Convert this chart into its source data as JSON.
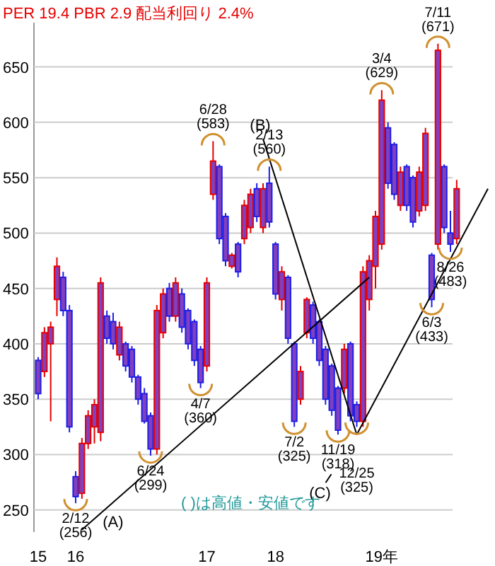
{
  "chart_data": {
    "type": "candlestick",
    "title": "PER 19.4 PBR 2.9 配当利回り 2.4%",
    "categories": [
      "15",
      null,
      null,
      null,
      null,
      null,
      "16",
      null,
      null,
      null,
      null,
      null,
      null,
      null,
      null,
      null,
      null,
      null,
      null,
      null,
      null,
      null,
      null,
      null,
      null,
      null,
      null,
      "17",
      null,
      null,
      null,
      null,
      null,
      null,
      null,
      null,
      null,
      null,
      "18",
      null,
      null,
      null,
      null,
      null,
      null,
      null,
      null,
      null,
      null,
      null,
      null,
      null,
      null,
      null,
      null,
      "19年",
      null,
      null,
      null,
      null,
      null,
      null,
      null,
      null,
      null,
      null,
      null,
      null,
      null,
      null,
      null,
      null,
      null
    ],
    "ohlc": [
      [
        385,
        388,
        350,
        355
      ],
      [
        375,
        415,
        370,
        410
      ],
      [
        400,
        420,
        330,
        415
      ],
      [
        440,
        478,
        425,
        470
      ],
      [
        460,
        465,
        425,
        430
      ],
      [
        430,
        435,
        320,
        325
      ],
      [
        280,
        285,
        256,
        262
      ],
      [
        265,
        315,
        260,
        310
      ],
      [
        310,
        340,
        305,
        335
      ],
      [
        325,
        350,
        310,
        345
      ],
      [
        320,
        460,
        312,
        455
      ],
      [
        425,
        430,
        400,
        405
      ],
      [
        420,
        428,
        395,
        400
      ],
      [
        390,
        420,
        385,
        415
      ],
      [
        400,
        402,
        375,
        380
      ],
      [
        395,
        398,
        365,
        370
      ],
      [
        370,
        372,
        345,
        350
      ],
      [
        355,
        360,
        328,
        330
      ],
      [
        335,
        338,
        299,
        305
      ],
      [
        305,
        435,
        300,
        430
      ],
      [
        410,
        450,
        405,
        445
      ],
      [
        450,
        455,
        420,
        425
      ],
      [
        425,
        460,
        420,
        455
      ],
      [
        445,
        450,
        410,
        415
      ],
      [
        430,
        432,
        395,
        400
      ],
      [
        420,
        422,
        380,
        385
      ],
      [
        395,
        398,
        360,
        365
      ],
      [
        380,
        460,
        375,
        455
      ],
      [
        535,
        583,
        530,
        565
      ],
      [
        560,
        562,
        490,
        495
      ],
      [
        515,
        518,
        470,
        475
      ],
      [
        470,
        482,
        468,
        480
      ],
      [
        490,
        492,
        460,
        465
      ],
      [
        495,
        530,
        490,
        525
      ],
      [
        505,
        540,
        500,
        535
      ],
      [
        540,
        545,
        510,
        515
      ],
      [
        505,
        545,
        500,
        540
      ],
      [
        545,
        560,
        505,
        510
      ],
      [
        490,
        492,
        440,
        445
      ],
      [
        440,
        470,
        430,
        465
      ],
      [
        460,
        462,
        400,
        405
      ],
      [
        400,
        402,
        325,
        330
      ],
      [
        350,
        380,
        345,
        375
      ],
      [
        410,
        442,
        405,
        440
      ],
      [
        435,
        438,
        400,
        405
      ],
      [
        420,
        422,
        380,
        385
      ],
      [
        395,
        398,
        345,
        350
      ],
      [
        380,
        382,
        335,
        340
      ],
      [
        360,
        362,
        318,
        322
      ],
      [
        360,
        400,
        355,
        395
      ],
      [
        400,
        402,
        330,
        335
      ],
      [
        345,
        348,
        325,
        330
      ],
      [
        330,
        470,
        325,
        465
      ],
      [
        440,
        480,
        430,
        475
      ],
      [
        470,
        520,
        450,
        515
      ],
      [
        490,
        629,
        485,
        620
      ],
      [
        595,
        600,
        540,
        545
      ],
      [
        580,
        582,
        530,
        535
      ],
      [
        525,
        560,
        520,
        555
      ],
      [
        560,
        562,
        520,
        525
      ],
      [
        550,
        552,
        505,
        510
      ],
      [
        520,
        560,
        515,
        555
      ],
      [
        525,
        595,
        520,
        590
      ],
      [
        480,
        482,
        433,
        440
      ],
      [
        490,
        671,
        485,
        665
      ],
      [
        560,
        562,
        500,
        505
      ],
      [
        500,
        520,
        483,
        490
      ],
      [
        495,
        548,
        490,
        540
      ],
      null,
      null,
      null,
      null,
      null
    ],
    "colors": [
      "#1e1ee6",
      "#e60000",
      "#e60000",
      "#e60000",
      "#1e1ee6",
      "#1e1ee6",
      "#1e1ee6",
      "#e60000",
      "#e60000",
      "#e60000",
      "#e60000",
      "#1e1ee6",
      "#1e1ee6",
      "#e60000",
      "#1e1ee6",
      "#1e1ee6",
      "#1e1ee6",
      "#1e1ee6",
      "#1e1ee6",
      "#e60000",
      "#e60000",
      "#1e1ee6",
      "#e60000",
      "#1e1ee6",
      "#1e1ee6",
      "#1e1ee6",
      "#1e1ee6",
      "#e60000",
      "#e60000",
      "#1e1ee6",
      "#1e1ee6",
      "#e60000",
      "#1e1ee6",
      "#e60000",
      "#e60000",
      "#1e1ee6",
      "#e60000",
      "#1e1ee6",
      "#1e1ee6",
      "#e60000",
      "#1e1ee6",
      "#1e1ee6",
      "#e60000",
      "#e60000",
      "#1e1ee6",
      "#1e1ee6",
      "#1e1ee6",
      "#1e1ee6",
      "#1e1ee6",
      "#e60000",
      "#1e1ee6",
      "#1e1ee6",
      "#e60000",
      "#e60000",
      "#e60000",
      "#e60000",
      "#1e1ee6",
      "#1e1ee6",
      "#e60000",
      "#1e1ee6",
      "#1e1ee6",
      "#e60000",
      "#e60000",
      "#1e1ee6",
      "#e60000",
      "#1e1ee6",
      "#1e1ee6",
      "#e60000",
      null,
      null,
      null,
      null,
      null
    ],
    "ylim": [
      230,
      690
    ],
    "yticks": [
      250,
      300,
      350,
      400,
      450,
      500,
      550,
      600,
      650
    ],
    "grid": "y",
    "series": [
      {
        "name": "(A)",
        "type": "line",
        "color": "#000000",
        "values": [
          null,
          null,
          null,
          null,
          null,
          null,
          null,
          232,
          null,
          null,
          null,
          null,
          null,
          null,
          null,
          null,
          null,
          null,
          null,
          null,
          null,
          null,
          null,
          null,
          null,
          null,
          null,
          null,
          null,
          null,
          null,
          null,
          null,
          null,
          null,
          null,
          null,
          null,
          null,
          null,
          null,
          null,
          null,
          null,
          null,
          null,
          null,
          null,
          null,
          null,
          null,
          null,
          null,
          460,
          null,
          null,
          null,
          null,
          null,
          null,
          null,
          null,
          null,
          null,
          null,
          null,
          null,
          null,
          null,
          null,
          null,
          null,
          null
        ]
      },
      {
        "name": "(B)",
        "type": "line",
        "color": "#000000",
        "values": [
          null,
          null,
          null,
          null,
          null,
          null,
          null,
          null,
          null,
          null,
          null,
          null,
          null,
          null,
          null,
          null,
          null,
          null,
          null,
          null,
          null,
          null,
          null,
          null,
          null,
          null,
          null,
          null,
          null,
          null,
          null,
          null,
          null,
          null,
          null,
          null,
          585,
          null,
          null,
          null,
          null,
          null,
          null,
          null,
          null,
          null,
          null,
          null,
          null,
          null,
          null,
          318,
          null,
          null,
          null,
          null,
          null,
          null,
          null,
          null,
          null,
          null,
          null,
          null,
          null,
          null,
          null,
          null,
          null,
          null,
          null,
          null,
          null
        ]
      },
      {
        "name": "(C)",
        "type": "line",
        "color": "#000000",
        "values": [
          null,
          null,
          null,
          null,
          null,
          null,
          null,
          null,
          null,
          null,
          null,
          null,
          null,
          null,
          null,
          null,
          null,
          null,
          null,
          null,
          null,
          null,
          null,
          null,
          null,
          null,
          null,
          null,
          null,
          null,
          null,
          null,
          null,
          null,
          null,
          null,
          null,
          null,
          null,
          null,
          null,
          null,
          null,
          null,
          null,
          null,
          null,
          null,
          null,
          null,
          null,
          318,
          null,
          null,
          null,
          null,
          null,
          null,
          null,
          null,
          null,
          null,
          null,
          null,
          null,
          null,
          null,
          null,
          null,
          null,
          null,
          null,
          540
        ]
      }
    ],
    "annotations": [
      {
        "text": "2/12 (256)",
        "y": 256
      },
      {
        "text": "6/24 (299)",
        "y": 299
      },
      {
        "text": "4/7 (360)",
        "y": 360
      },
      {
        "text": "6/28 (583)",
        "y": 583
      },
      {
        "text": "2/13 (560)",
        "y": 560
      },
      {
        "text": "7/2 (325)",
        "y": 325
      },
      {
        "text": "11/19 (318)",
        "y": 318
      },
      {
        "text": "12/25 (325)",
        "y": 325
      },
      {
        "text": "3/4 (629)",
        "y": 629
      },
      {
        "text": "6/3 (433)",
        "y": 433
      },
      {
        "text": "7/11 (671)",
        "y": 671
      },
      {
        "text": "8/26 (483)",
        "y": 483
      },
      "( )は高値・安値です"
    ]
  }
}
